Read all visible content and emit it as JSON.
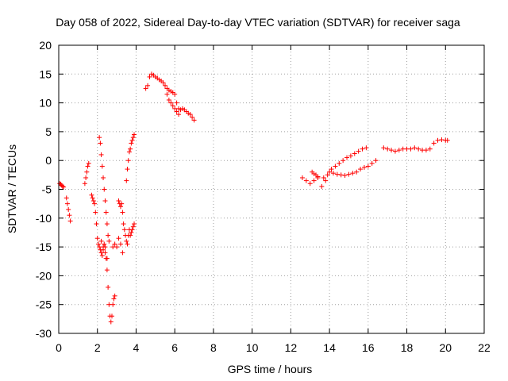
{
  "chart_data": {
    "type": "scatter",
    "title": "Day 058 of 2022, Sidereal Day-to-day VTEC variation (SDTVAR) for receiver saga",
    "xlabel": "GPS time / hours",
    "ylabel": "SDTVAR / TECUs",
    "xlim": [
      0,
      22
    ],
    "ylim": [
      -30,
      20
    ],
    "xticks": [
      0,
      2,
      4,
      6,
      8,
      10,
      12,
      14,
      16,
      18,
      20,
      22
    ],
    "yticks": [
      -30,
      -25,
      -20,
      -15,
      -10,
      -5,
      0,
      5,
      10,
      15,
      20
    ],
    "grid": true,
    "marker": "+",
    "color": "#ff0000",
    "series": [
      {
        "name": "SDTVAR",
        "x": [
          0.05,
          0.1,
          0.15,
          0.2,
          0.25,
          0.4,
          0.45,
          0.5,
          0.55,
          0.6,
          1.35,
          1.4,
          1.45,
          1.5,
          1.55,
          1.7,
          1.75,
          1.8,
          1.85,
          1.9,
          1.95,
          2.0,
          2.05,
          2.1,
          2.15,
          2.2,
          2.25,
          2.3,
          2.35,
          2.4,
          2.45,
          2.5,
          2.55,
          2.6,
          2.65,
          2.7,
          2.75,
          2.8,
          2.85,
          2.9,
          2.1,
          2.15,
          2.2,
          2.25,
          2.3,
          2.35,
          2.4,
          2.45,
          2.5,
          2.55,
          2.6,
          2.2,
          2.3,
          2.4,
          2.5,
          2.8,
          2.9,
          3.0,
          3.1,
          3.2,
          3.3,
          3.1,
          3.15,
          3.2,
          3.25,
          3.3,
          3.35,
          3.4,
          3.45,
          3.5,
          3.55,
          3.6,
          3.65,
          3.7,
          3.75,
          3.8,
          3.85,
          3.9,
          3.5,
          3.55,
          3.6,
          3.65,
          3.7,
          3.75,
          3.8,
          3.85,
          3.9,
          4.5,
          4.6,
          4.7,
          4.8,
          4.9,
          5.0,
          5.1,
          5.2,
          5.3,
          5.4,
          5.5,
          5.6,
          5.7,
          5.8,
          5.9,
          6.0,
          6.1,
          6.2,
          6.3,
          6.4,
          6.5,
          6.6,
          6.7,
          6.8,
          6.9,
          7.0,
          5.6,
          5.7,
          5.8,
          5.9,
          6.0,
          6.1,
          6.2,
          12.6,
          12.8,
          13.0,
          13.2,
          13.4,
          13.6,
          13.8,
          13.1,
          13.2,
          13.3,
          13.4,
          13.7,
          13.9,
          14.1,
          14.3,
          14.5,
          14.7,
          14.9,
          15.1,
          15.3,
          15.5,
          15.7,
          15.9,
          14.0,
          14.2,
          14.4,
          14.6,
          14.8,
          15.0,
          15.2,
          15.4,
          15.6,
          15.8,
          16.0,
          16.2,
          16.4,
          16.8,
          17.0,
          17.2,
          17.4,
          17.6,
          17.8,
          18.0,
          18.2,
          18.4,
          18.6,
          18.8,
          19.0,
          19.2,
          19.4,
          19.6,
          19.8,
          20.0,
          20.1
        ],
        "y": [
          -4.0,
          -4.1,
          -4.3,
          -4.5,
          -4.6,
          -6.5,
          -7.5,
          -8.5,
          -9.5,
          -10.5,
          -4.0,
          -3.0,
          -2.0,
          -1.0,
          -0.5,
          -6.0,
          -6.5,
          -7.0,
          -7.5,
          -9.0,
          -11.0,
          -13.5,
          -14.5,
          -15.0,
          -15.5,
          -16.0,
          -16.5,
          -15.5,
          -14.5,
          -15.0,
          -17.0,
          -19.0,
          -22.0,
          -25.0,
          -27.0,
          -28.0,
          -27.0,
          -25.0,
          -24.0,
          -23.5,
          4.0,
          3.0,
          1.0,
          -1.0,
          -3.0,
          -5.0,
          -7.0,
          -9.0,
          -11.0,
          -13.0,
          -14.0,
          -14.0,
          -15.0,
          -16.0,
          -17.0,
          -15.0,
          -14.5,
          -15.0,
          -13.5,
          -14.5,
          -16.0,
          -7.0,
          -7.5,
          -8.0,
          -7.5,
          -9.0,
          -11.0,
          -12.0,
          -13.0,
          -14.0,
          -14.5,
          -13.0,
          -12.0,
          -13.0,
          -12.5,
          -12.0,
          -11.5,
          -11.0,
          -3.5,
          -1.5,
          0.0,
          1.5,
          2.0,
          3.0,
          3.5,
          4.0,
          4.5,
          12.5,
          13.0,
          14.5,
          15.0,
          14.8,
          14.5,
          14.3,
          14.0,
          13.8,
          13.5,
          13.0,
          12.5,
          12.2,
          12.0,
          11.8,
          11.5,
          10.0,
          9.0,
          8.8,
          9.0,
          8.8,
          8.5,
          8.2,
          8.0,
          7.5,
          7.0,
          11.5,
          10.5,
          10.0,
          9.5,
          9.0,
          8.5,
          8.0,
          -3.0,
          -3.5,
          -4.0,
          -3.5,
          -3.0,
          -4.5,
          -3.5,
          -2.0,
          -2.3,
          -2.5,
          -2.8,
          -3.0,
          -2.5,
          -1.5,
          -1.0,
          -0.5,
          0.0,
          0.5,
          0.8,
          1.2,
          1.6,
          2.0,
          2.2,
          -2.0,
          -2.2,
          -2.4,
          -2.5,
          -2.6,
          -2.4,
          -2.2,
          -2.0,
          -1.5,
          -1.2,
          -1.0,
          -0.5,
          0.0,
          2.2,
          2.0,
          1.8,
          1.6,
          1.8,
          2.0,
          2.0,
          2.0,
          2.2,
          2.0,
          1.8,
          1.8,
          2.0,
          3.0,
          3.5,
          3.6,
          3.5,
          3.5
        ]
      }
    ]
  }
}
